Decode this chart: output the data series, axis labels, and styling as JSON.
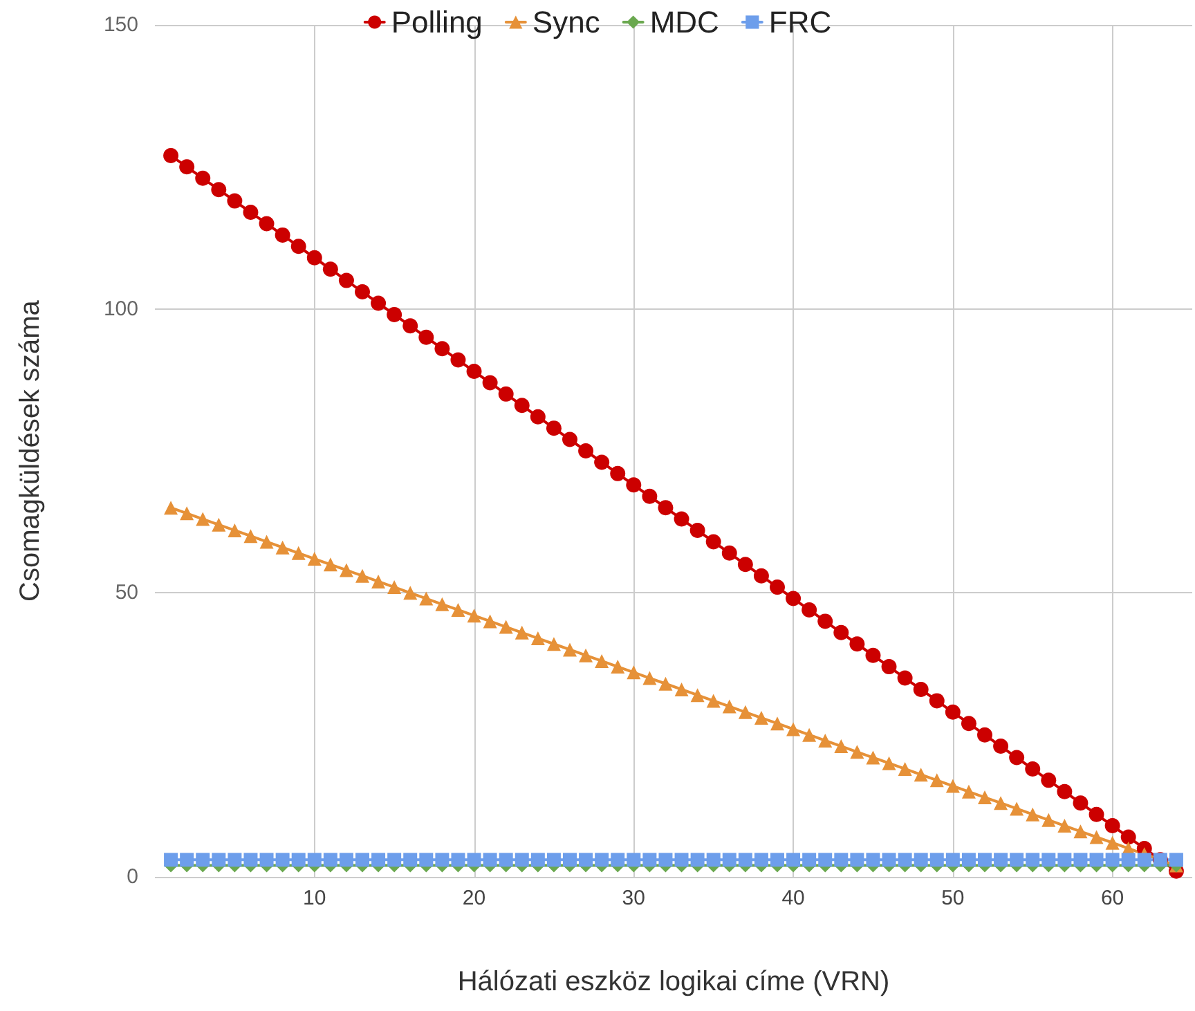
{
  "chart_data": {
    "type": "line",
    "xlabel": "Hálózati eszköz logikai címe (VRN)",
    "ylabel": "Csomagküldések száma",
    "x": [
      1,
      2,
      3,
      4,
      5,
      6,
      7,
      8,
      9,
      10,
      11,
      12,
      13,
      14,
      15,
      16,
      17,
      18,
      19,
      20,
      21,
      22,
      23,
      24,
      25,
      26,
      27,
      28,
      29,
      30,
      31,
      32,
      33,
      34,
      35,
      36,
      37,
      38,
      39,
      40,
      41,
      42,
      43,
      44,
      45,
      46,
      47,
      48,
      49,
      50,
      51,
      52,
      53,
      54,
      55,
      56,
      57,
      58,
      59,
      60,
      61,
      62,
      63,
      64
    ],
    "series": [
      {
        "name": "Polling",
        "color": "#cc0000",
        "marker": "circle",
        "values": [
          127,
          125,
          123,
          121,
          119,
          117,
          115,
          113,
          111,
          109,
          107,
          105,
          103,
          101,
          99,
          97,
          95,
          93,
          91,
          89,
          87,
          85,
          83,
          81,
          79,
          77,
          75,
          73,
          71,
          69,
          67,
          65,
          63,
          61,
          59,
          57,
          55,
          53,
          51,
          49,
          47,
          45,
          43,
          41,
          39,
          37,
          35,
          33,
          31,
          29,
          27,
          25,
          23,
          21,
          19,
          17,
          15,
          13,
          11,
          9,
          7,
          5,
          3,
          1
        ]
      },
      {
        "name": "Sync",
        "color": "#e69138",
        "marker": "triangle",
        "values": [
          65,
          64,
          63,
          62,
          61,
          60,
          59,
          58,
          57,
          56,
          55,
          54,
          53,
          52,
          51,
          50,
          49,
          48,
          47,
          46,
          45,
          44,
          43,
          42,
          41,
          40,
          39,
          38,
          37,
          36,
          35,
          34,
          33,
          32,
          31,
          30,
          29,
          28,
          27,
          26,
          25,
          24,
          23,
          22,
          21,
          20,
          19,
          18,
          17,
          16,
          15,
          14,
          13,
          12,
          11,
          10,
          9,
          8,
          7,
          6,
          5,
          4,
          3,
          2
        ]
      },
      {
        "name": "MDC",
        "color": "#6aa84f",
        "marker": "diamond",
        "values": [
          2,
          2,
          2,
          2,
          2,
          2,
          2,
          2,
          2,
          2,
          2,
          2,
          2,
          2,
          2,
          2,
          2,
          2,
          2,
          2,
          2,
          2,
          2,
          2,
          2,
          2,
          2,
          2,
          2,
          2,
          2,
          2,
          2,
          2,
          2,
          2,
          2,
          2,
          2,
          2,
          2,
          2,
          2,
          2,
          2,
          2,
          2,
          2,
          2,
          2,
          2,
          2,
          2,
          2,
          2,
          2,
          2,
          2,
          2,
          2,
          2,
          2,
          2,
          2
        ]
      },
      {
        "name": "FRC",
        "color": "#6d9eeb",
        "marker": "square",
        "values": [
          3,
          3,
          3,
          3,
          3,
          3,
          3,
          3,
          3,
          3,
          3,
          3,
          3,
          3,
          3,
          3,
          3,
          3,
          3,
          3,
          3,
          3,
          3,
          3,
          3,
          3,
          3,
          3,
          3,
          3,
          3,
          3,
          3,
          3,
          3,
          3,
          3,
          3,
          3,
          3,
          3,
          3,
          3,
          3,
          3,
          3,
          3,
          3,
          3,
          3,
          3,
          3,
          3,
          3,
          3,
          3,
          3,
          3,
          3,
          3,
          3,
          3,
          3,
          3
        ]
      }
    ],
    "xlim": [
      0,
      65
    ],
    "xticks": [
      10,
      20,
      30,
      40,
      50,
      60
    ],
    "ylim": [
      0,
      150
    ],
    "yticks": [
      0,
      50,
      100,
      150
    ],
    "grid": true,
    "legend": "top",
    "line_style": "solid"
  }
}
